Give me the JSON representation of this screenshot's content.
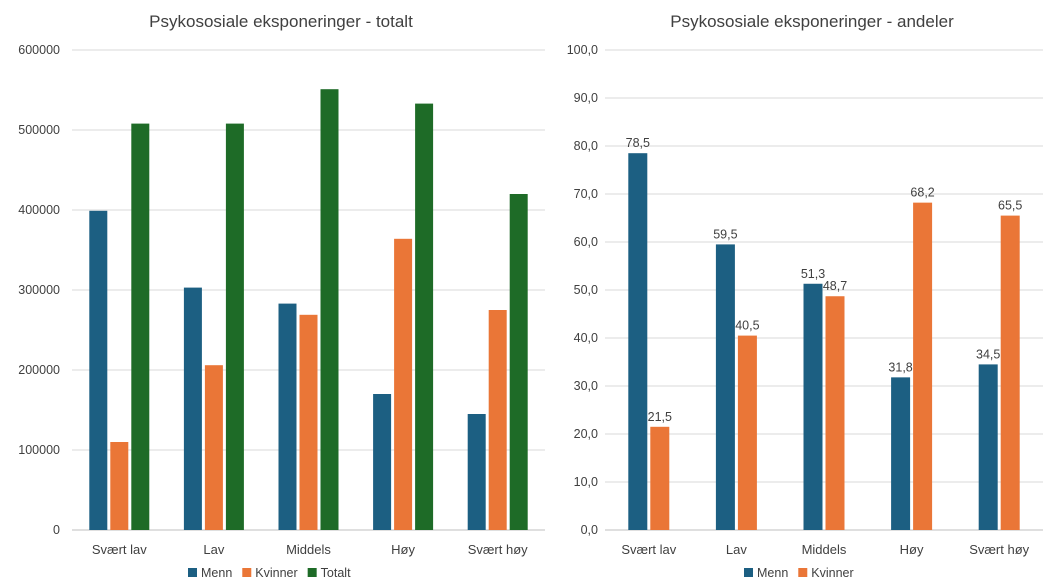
{
  "colors": {
    "menn": "#1c5f82",
    "kvinner": "#ea7637",
    "totalt": "#1e6b27"
  },
  "chart_data": [
    {
      "type": "bar",
      "title": "Psykososiale eksponeringer - totalt",
      "categories": [
        "Svært lav",
        "Lav",
        "Middels",
        "Høy",
        "Svært høy"
      ],
      "ylim": [
        0,
        600000
      ],
      "yticks": [
        0,
        100000,
        200000,
        300000,
        400000,
        500000,
        600000
      ],
      "ytick_labels": [
        "0",
        "100000",
        "200000",
        "300000",
        "400000",
        "500000",
        "600000"
      ],
      "grid": true,
      "legend_position": "bottom",
      "series": [
        {
          "name": "Menn",
          "color_key": "menn",
          "values": [
            399000,
            303000,
            283000,
            170000,
            145000
          ]
        },
        {
          "name": "Kvinner",
          "color_key": "kvinner",
          "values": [
            110000,
            206000,
            269000,
            364000,
            275000
          ]
        },
        {
          "name": "Totalt",
          "color_key": "totalt",
          "values": [
            508000,
            508000,
            551000,
            533000,
            420000
          ]
        }
      ]
    },
    {
      "type": "bar",
      "title": "Psykososiale eksponeringer - andeler",
      "categories": [
        "Svært lav",
        "Lav",
        "Middels",
        "Høy",
        "Svært høy"
      ],
      "ylim": [
        0,
        100
      ],
      "yticks": [
        0,
        10,
        20,
        30,
        40,
        50,
        60,
        70,
        80,
        90,
        100
      ],
      "ytick_labels": [
        "0,0",
        "10,0",
        "20,0",
        "30,0",
        "40,0",
        "50,0",
        "60,0",
        "70,0",
        "80,0",
        "90,0",
        "100,0"
      ],
      "grid": true,
      "legend_position": "bottom",
      "series": [
        {
          "name": "Menn",
          "color_key": "menn",
          "values": [
            78.5,
            59.5,
            51.3,
            31.8,
            34.5
          ],
          "labels": [
            "78,5",
            "59,5",
            "51,3",
            "31,8",
            "34,5"
          ]
        },
        {
          "name": "Kvinner",
          "color_key": "kvinner",
          "values": [
            21.5,
            40.5,
            48.7,
            68.2,
            65.5
          ],
          "labels": [
            "21,5",
            "40,5",
            "48,7",
            "68,2",
            "65,5"
          ]
        }
      ]
    }
  ]
}
